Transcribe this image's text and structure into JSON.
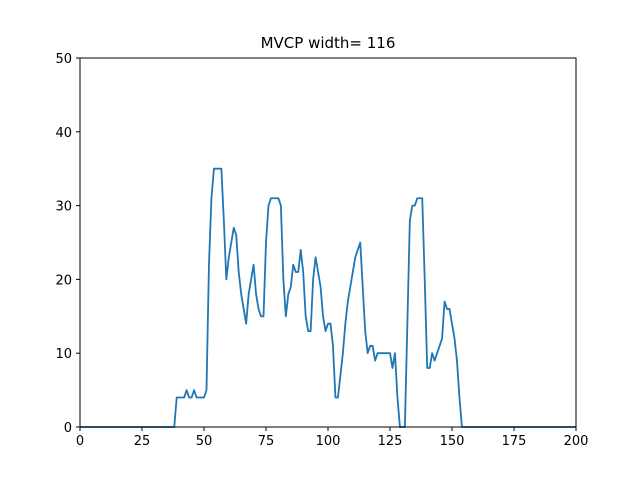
{
  "chart_data": {
    "type": "line",
    "title": "MVCP width= 116",
    "x": [
      0,
      37,
      38,
      39,
      40,
      41,
      42,
      43,
      44,
      45,
      46,
      47,
      48,
      49,
      50,
      51,
      52,
      53,
      54,
      55,
      56,
      57,
      58,
      59,
      60,
      61,
      62,
      63,
      64,
      65,
      66,
      67,
      68,
      69,
      70,
      71,
      72,
      73,
      74,
      75,
      76,
      77,
      78,
      79,
      80,
      81,
      82,
      83,
      84,
      85,
      86,
      87,
      88,
      89,
      90,
      91,
      92,
      93,
      94,
      95,
      96,
      97,
      98,
      99,
      100,
      101,
      102,
      103,
      104,
      105,
      106,
      107,
      108,
      109,
      110,
      111,
      112,
      113,
      114,
      115,
      116,
      117,
      118,
      119,
      120,
      121,
      122,
      123,
      124,
      125,
      126,
      127,
      128,
      129,
      130,
      131,
      132,
      133,
      134,
      135,
      136,
      137,
      138,
      139,
      140,
      141,
      142,
      143,
      144,
      145,
      146,
      147,
      148,
      149,
      150,
      151,
      152,
      153,
      154,
      200
    ],
    "series": [
      {
        "name": "MVCP",
        "color": "#1f77b4",
        "values": [
          0,
          0,
          0,
          4,
          4,
          4,
          4,
          5,
          4,
          4,
          5,
          4,
          4,
          4,
          4,
          5,
          22,
          31,
          35,
          35,
          35,
          35,
          28,
          20,
          23,
          25,
          27,
          26,
          21,
          18,
          16,
          14,
          18,
          20,
          22,
          18,
          16,
          15,
          15,
          25,
          30,
          31,
          31,
          31,
          31,
          30,
          20,
          15,
          18,
          19,
          22,
          21,
          21,
          24,
          21,
          15,
          13,
          13,
          20,
          23,
          21,
          19,
          15,
          13,
          14,
          14,
          11,
          4,
          4,
          7,
          10,
          14,
          17,
          19,
          21,
          23,
          24,
          25,
          19,
          13,
          10,
          11,
          11,
          9,
          10,
          10,
          10,
          10,
          10,
          10,
          8,
          10,
          4,
          0,
          0,
          0,
          14,
          28,
          30,
          30,
          31,
          31,
          31,
          20,
          8,
          8,
          10,
          9,
          10,
          11,
          12,
          17,
          16,
          16,
          14,
          12,
          9,
          4,
          0,
          0
        ]
      }
    ],
    "xlim": [
      0,
      200
    ],
    "xticks": [
      0,
      25,
      50,
      75,
      100,
      125,
      150,
      175,
      200
    ],
    "ylim": [
      0,
      50
    ],
    "yticks": [
      0,
      10,
      20,
      30,
      40,
      50
    ]
  }
}
